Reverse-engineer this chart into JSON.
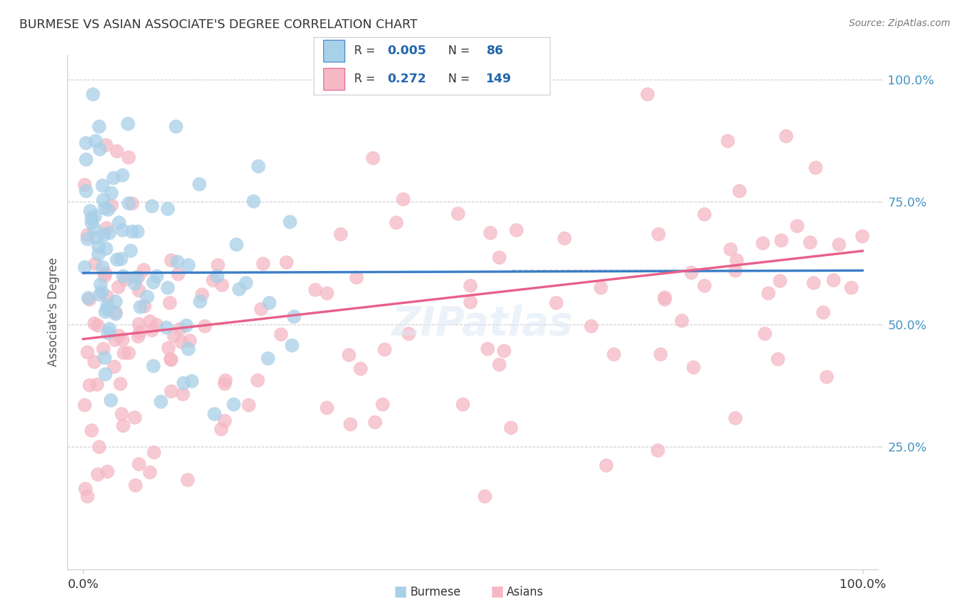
{
  "title": "BURMESE VS ASIAN ASSOCIATE'S DEGREE CORRELATION CHART",
  "source": "Source: ZipAtlas.com",
  "ylabel": "Associate's Degree",
  "burmese_color": "#a8d0e8",
  "asian_color": "#f5b8c4",
  "burmese_line_color": "#3b7ec8",
  "asian_line_color": "#e8608a",
  "dashed_line_color": "#bbbbbb",
  "grid_color": "#cccccc",
  "title_color": "#333333",
  "tick_color": "#4393c3",
  "legend_text_color": "#2166ac",
  "legend_label_color": "#333333",
  "background_color": "#ffffff",
  "legend_r_burmese": "0.005",
  "legend_n_burmese": "86",
  "legend_r_asian": "0.272",
  "legend_n_asian": "149",
  "burmese_trend_x": [
    0.0,
    100.0
  ],
  "burmese_trend_y": [
    60.5,
    61.0
  ],
  "asian_trend_x": [
    0.0,
    100.0
  ],
  "asian_trend_y": [
    47.0,
    65.0
  ],
  "dashed_line_x": [
    55.0,
    100.0
  ],
  "dashed_line_y": [
    61.0,
    61.0
  ],
  "xlim": [
    -2,
    102
  ],
  "ylim": [
    0,
    105
  ],
  "yticks": [
    25,
    50,
    75,
    100
  ],
  "ytick_labels": [
    "25.0%",
    "50.0%",
    "75.0%",
    "100.0%"
  ],
  "xticks": [
    0,
    100
  ],
  "xtick_labels": [
    "0.0%",
    "100.0%"
  ]
}
